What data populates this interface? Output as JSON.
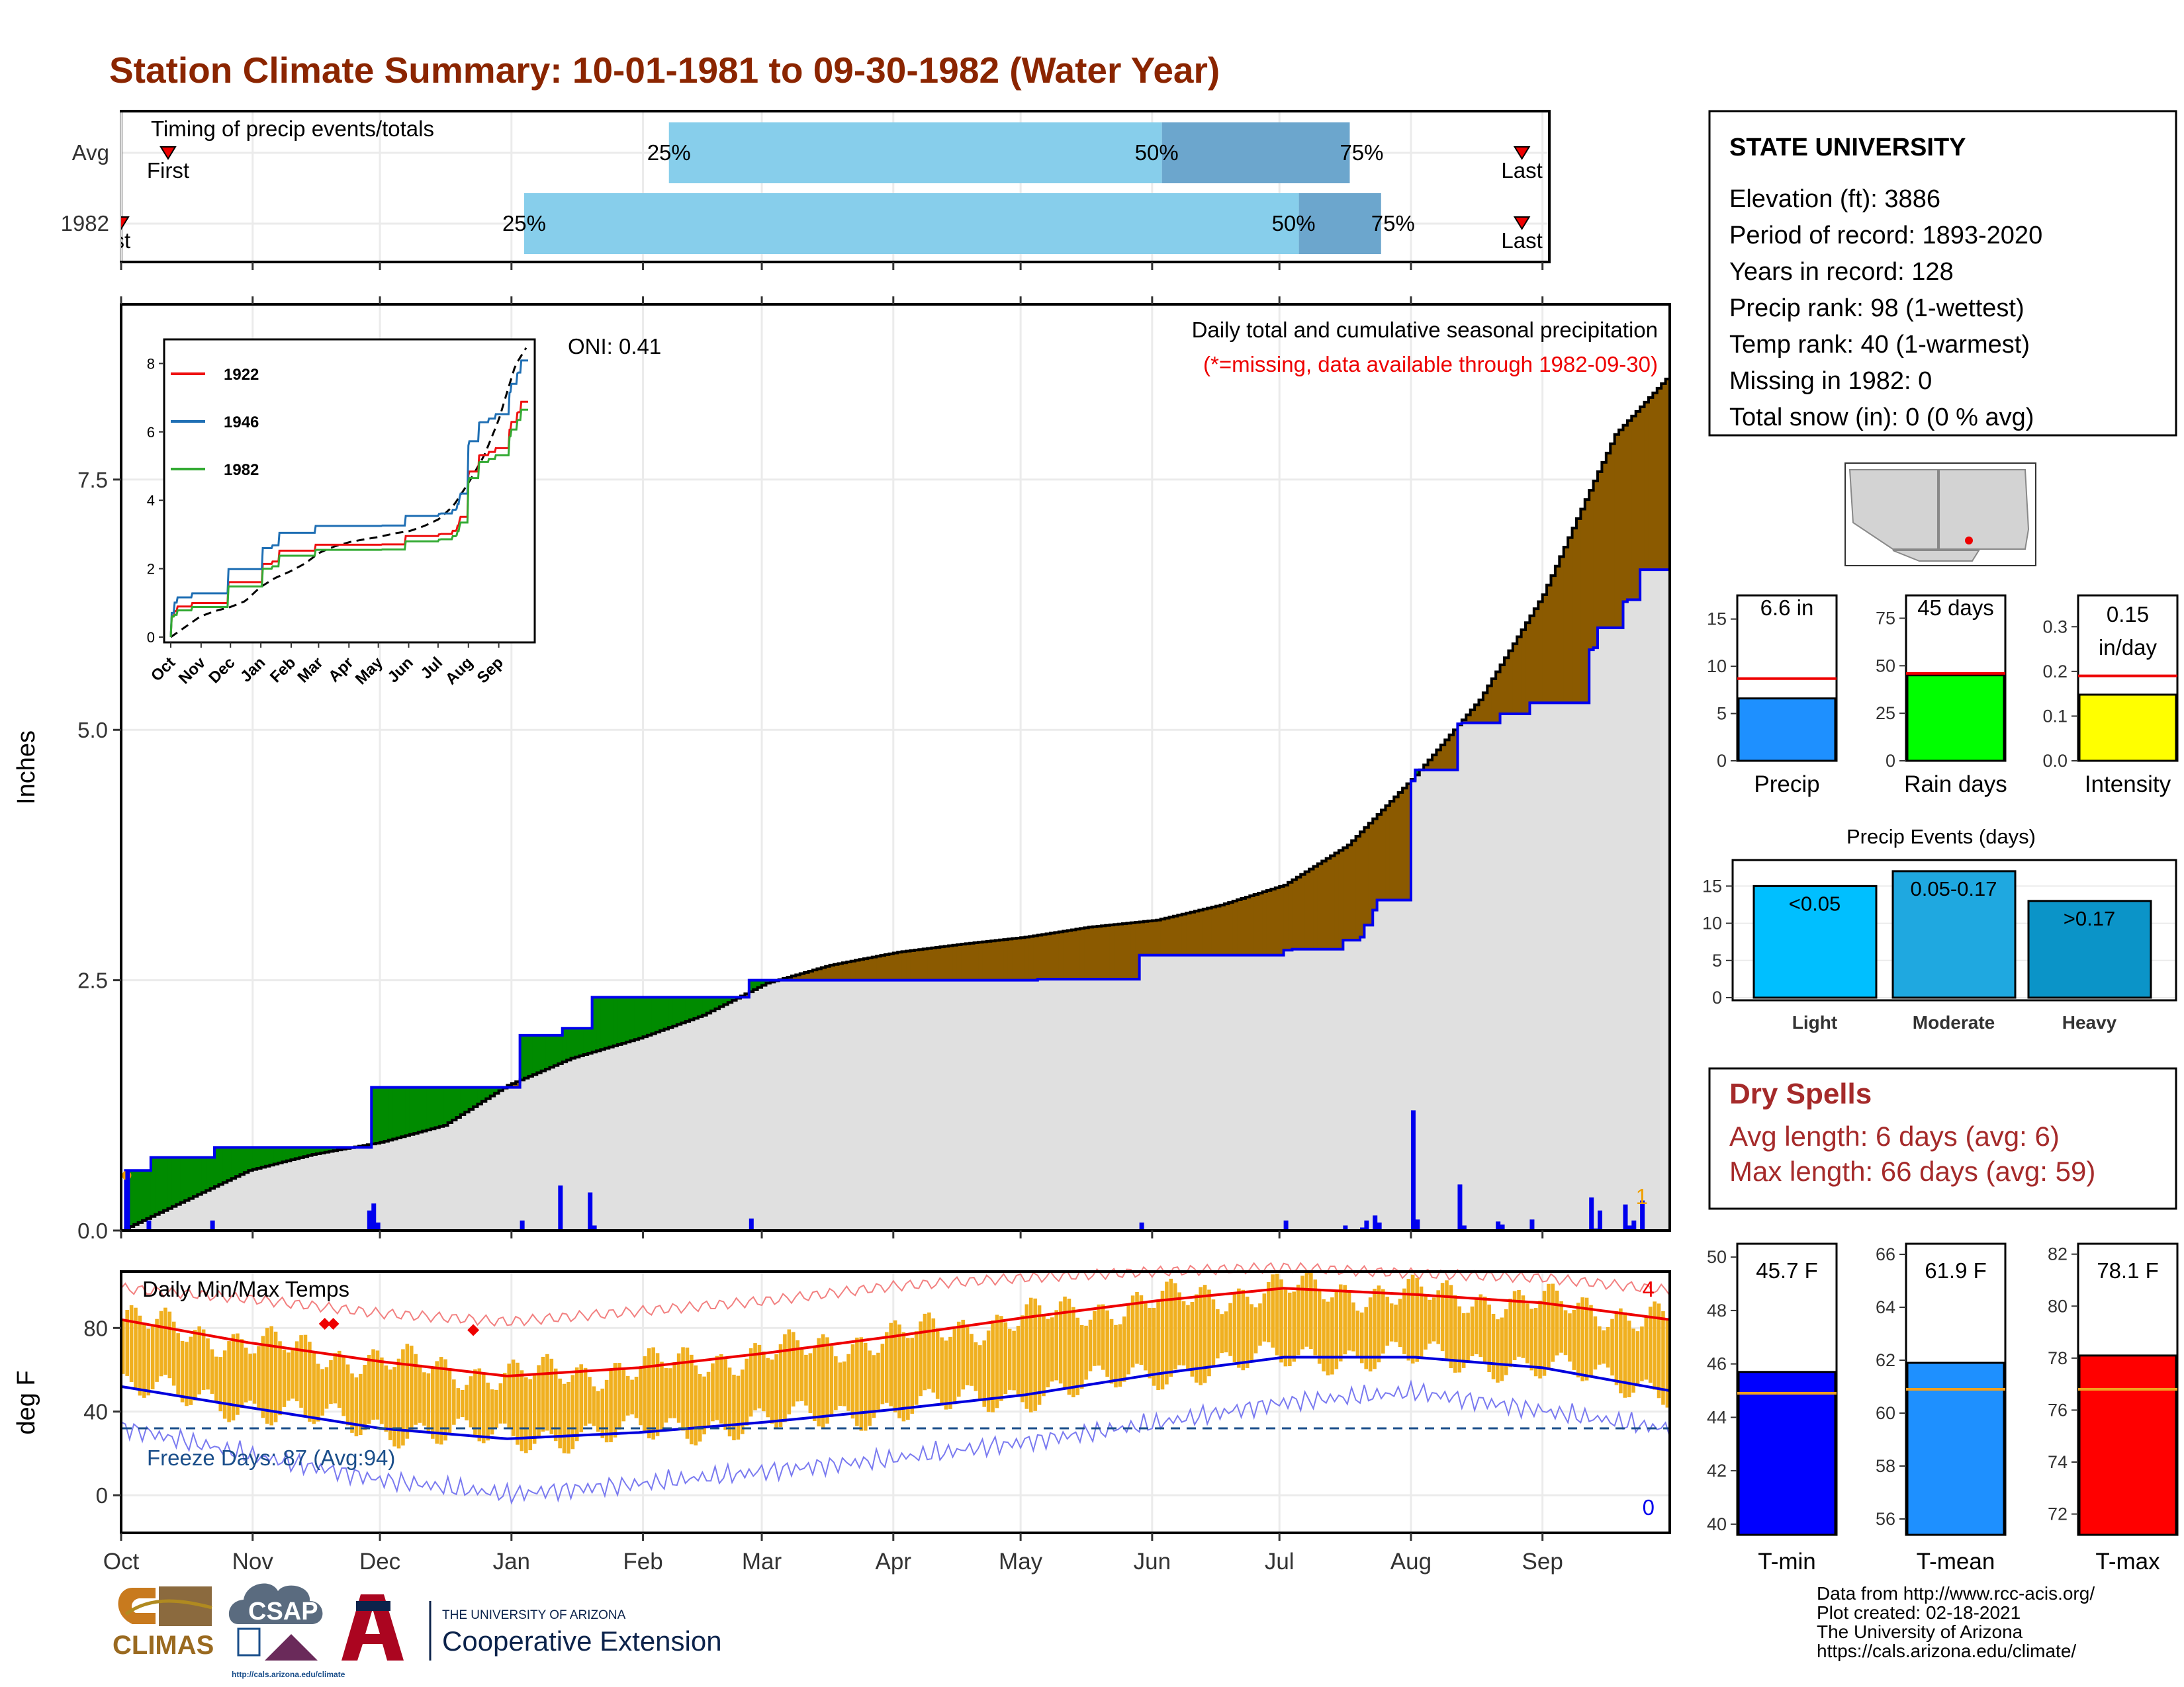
{
  "title": "Station Climate Summary: 10-01-1981 to 09-30-1982 (Water Year)",
  "colors": {
    "title": "#8B2500",
    "brown": "#8B5A00",
    "green": "#008B00",
    "blue": "#0000EE",
    "light_gray": "#E0E0E0",
    "bar_light": "#87CEEB",
    "bar_dark": "#6CA6CD",
    "orange_bars": "#F0B020",
    "dry_red": "#A52A2A"
  },
  "months": [
    "Oct",
    "Nov",
    "Dec",
    "Jan",
    "Feb",
    "Mar",
    "Apr",
    "May",
    "Jun",
    "Jul",
    "Aug",
    "Sep"
  ],
  "timing": {
    "label": "Timing of precip events/totals",
    "rows": [
      {
        "name": "Avg",
        "first": "First",
        "last": "Last",
        "first_day": 12,
        "last_day": 358,
        "p25_day": 140,
        "p50_day": 266,
        "p75_day": 314,
        "p25": "25%",
        "p50": "50%",
        "p75": "75%"
      },
      {
        "name": "1982",
        "first": "First",
        "last": "Last",
        "first_day": 0,
        "last_day": 358,
        "p25_day": 103,
        "p50_day": 301,
        "p75_day": 322,
        "p25": "25%",
        "p50": "50%",
        "p75": "75%"
      }
    ]
  },
  "precip_panel": {
    "ylabel": "Inches",
    "yticks": [
      "0.0",
      "2.5",
      "5.0",
      "7.5"
    ],
    "oni": "ONI: 0.41",
    "caption": "Daily total and cumulative seasonal precipitation",
    "missing_note": "(*=missing, data available through 1982-09-30)",
    "count_label": "1"
  },
  "inset": {
    "yticks": [
      "0",
      "2",
      "4",
      "6",
      "8"
    ],
    "months": [
      "Oct",
      "Nov",
      "Dec",
      "Jan",
      "Feb",
      "Mar",
      "Apr",
      "May",
      "Jun",
      "Jul",
      "Aug",
      "Sep"
    ],
    "legend": [
      {
        "name": "1922",
        "color": "#EE1111"
      },
      {
        "name": "1946",
        "color": "#1F6FB4"
      },
      {
        "name": "1982",
        "color": "#33AA33"
      }
    ]
  },
  "temp_panel": {
    "ylabel": "deg F",
    "label": "Daily Min/Max Temps",
    "yticks": [
      "0",
      "40",
      "80"
    ],
    "freeze": "Freeze Days: 87 (Avg:94)",
    "max_count": "4",
    "min_count": "0"
  },
  "station": {
    "name": "STATE UNIVERSITY",
    "lines": [
      "Elevation (ft): 3886",
      "Period of record: 1893-2020",
      "Years in record: 128",
      "Precip rank: 98 (1-wettest)",
      "Temp rank: 40 (1-warmest)",
      "Missing in 1982: 0",
      "Total snow (in): 0 (0 % avg)"
    ]
  },
  "mini_bars": [
    {
      "label": "Precip",
      "value_text": "6.6 in",
      "value": 6.6,
      "avg": 8.7,
      "max": 17.5,
      "ticks": [
        "0",
        "5",
        "10",
        "15"
      ],
      "tick_vals": [
        0,
        5,
        10,
        15
      ],
      "color": "#1E90FF"
    },
    {
      "label": "Rain days",
      "value_text": "45 days",
      "value": 45,
      "avg": 46,
      "max": 87,
      "ticks": [
        "0",
        "25",
        "50",
        "75"
      ],
      "tick_vals": [
        0,
        25,
        50,
        75
      ],
      "color": "#00FF00"
    },
    {
      "label": "Intensity",
      "value_text": "0.15",
      "value_text2": "in/day",
      "value": 0.148,
      "avg": 0.19,
      "max": 0.37,
      "ticks": [
        "0.0",
        "0.1",
        "0.2",
        "0.3"
      ],
      "tick_vals": [
        0,
        0.1,
        0.2,
        0.3
      ],
      "color": "#FFFF00"
    }
  ],
  "events": {
    "title": "Precip Events (days)",
    "ticks": [
      "0",
      "5",
      "10",
      "15"
    ],
    "bars": [
      {
        "label": "Light",
        "range": "<0.05",
        "value": 15,
        "color": "#00BFFF"
      },
      {
        "label": "Moderate",
        "range": "0.05-0.17",
        "value": 17,
        "color": "#1FA8E0"
      },
      {
        "label": "Heavy",
        "range": ">0.17",
        "value": 13,
        "color": "#0B94C8"
      }
    ]
  },
  "dry_spells": {
    "title": "Dry Spells",
    "avg": "Avg length: 6 days (avg: 6)",
    "max": "Max length: 66 days (avg: 59)"
  },
  "temp_bars": [
    {
      "label": "T-min",
      "value_text": "45.7 F",
      "value": 45.7,
      "avg": 44.9,
      "lo": 39.6,
      "hi": 50.5,
      "ticks": [
        "40",
        "42",
        "44",
        "46",
        "48",
        "50"
      ],
      "tick_vals": [
        40,
        42,
        44,
        46,
        48,
        50
      ],
      "color": "#0000FF"
    },
    {
      "label": "T-mean",
      "value_text": "61.9 F",
      "value": 61.9,
      "avg": 60.9,
      "lo": 55.4,
      "hi": 66.4,
      "ticks": [
        "56",
        "58",
        "60",
        "62",
        "64",
        "66"
      ],
      "tick_vals": [
        56,
        58,
        60,
        62,
        64,
        66
      ],
      "color": "#1E90FF"
    },
    {
      "label": "T-max",
      "value_text": "78.1 F",
      "value": 78.1,
      "avg": 76.8,
      "lo": 71.2,
      "hi": 82.4,
      "ticks": [
        "72",
        "74",
        "76",
        "78",
        "80",
        "82"
      ],
      "tick_vals": [
        72,
        74,
        76,
        78,
        80,
        82
      ],
      "color": "#FF0000"
    }
  ],
  "footer": {
    "lines": [
      "Data from http://www.rcc-acis.org/",
      "Plot created: 02-18-2021",
      "The University of Arizona",
      "https://cals.arizona.edu/climate/"
    ],
    "climas": "CLIMAS",
    "csap": "CSAP",
    "csap_url": "http://cals.arizona.edu/climate",
    "ua_small": "THE UNIVERSITY OF ARIZONA",
    "ua_big": "Cooperative Extension"
  },
  "chart_data": {
    "type": "area",
    "x_unit": "day of water year (Oct 1 = 0)",
    "y_unit": "inches",
    "ylim": [
      0,
      9.25
    ],
    "avg_cumulative": [
      [
        0,
        0
      ],
      [
        15,
        0.3
      ],
      [
        30,
        0.6
      ],
      [
        45,
        0.76
      ],
      [
        61,
        0.88
      ],
      [
        76,
        1.05
      ],
      [
        91,
        1.45
      ],
      [
        106,
        1.72
      ],
      [
        122,
        1.92
      ],
      [
        137,
        2.15
      ],
      [
        152,
        2.47
      ],
      [
        167,
        2.65
      ],
      [
        183,
        2.78
      ],
      [
        198,
        2.86
      ],
      [
        213,
        2.93
      ],
      [
        228,
        3.03
      ],
      [
        244,
        3.1
      ],
      [
        259,
        3.25
      ],
      [
        274,
        3.45
      ],
      [
        289,
        3.85
      ],
      [
        305,
        4.55
      ],
      [
        320,
        5.3
      ],
      [
        335,
        6.35
      ],
      [
        345,
        7.3
      ],
      [
        352,
        7.95
      ],
      [
        365,
        8.55
      ]
    ],
    "year_cumulative": [
      [
        0,
        0
      ],
      [
        1,
        0.6
      ],
      [
        6,
        0.6
      ],
      [
        7,
        0.73
      ],
      [
        21,
        0.73
      ],
      [
        22,
        0.83
      ],
      [
        58,
        0.83
      ],
      [
        59,
        1.43
      ],
      [
        93,
        1.43
      ],
      [
        94,
        1.95
      ],
      [
        103,
        1.95
      ],
      [
        104,
        2.02
      ],
      [
        110,
        2.02
      ],
      [
        111,
        2.33
      ],
      [
        147,
        2.33
      ],
      [
        148,
        2.5
      ],
      [
        215,
        2.5
      ],
      [
        216,
        2.51
      ],
      [
        239,
        2.51
      ],
      [
        240,
        2.75
      ],
      [
        273,
        2.75
      ],
      [
        274,
        2.8
      ],
      [
        276,
        2.81
      ],
      [
        286,
        2.81
      ],
      [
        288,
        2.9
      ],
      [
        292,
        2.93
      ],
      [
        293,
        3.05
      ],
      [
        295,
        3.2
      ],
      [
        296,
        3.3
      ],
      [
        303,
        3.3
      ],
      [
        304,
        4.49
      ],
      [
        305,
        4.6
      ],
      [
        314,
        4.6
      ],
      [
        315,
        5.06
      ],
      [
        316,
        5.07
      ],
      [
        323,
        5.07
      ],
      [
        325,
        5.16
      ],
      [
        331,
        5.16
      ],
      [
        332,
        5.27
      ],
      [
        345,
        5.27
      ],
      [
        346,
        5.8
      ],
      [
        347,
        5.82
      ],
      [
        348,
        6.02
      ],
      [
        353,
        6.02
      ],
      [
        354,
        6.28
      ],
      [
        355,
        6.3
      ],
      [
        358,
        6.6
      ],
      [
        365,
        6.6
      ]
    ],
    "daily_precip": [
      [
        1,
        0.6
      ],
      [
        6,
        0.1
      ],
      [
        21,
        0.1
      ],
      [
        58,
        0.2
      ],
      [
        59,
        0.27
      ],
      [
        60,
        0.08
      ],
      [
        94,
        0.1
      ],
      [
        103,
        0.45
      ],
      [
        110,
        0.38
      ],
      [
        111,
        0.05
      ],
      [
        148,
        0.12
      ],
      [
        240,
        0.08
      ],
      [
        274,
        0.1
      ],
      [
        288,
        0.05
      ],
      [
        292,
        0.03
      ],
      [
        293,
        0.1
      ],
      [
        295,
        0.15
      ],
      [
        296,
        0.08
      ],
      [
        304,
        1.2
      ],
      [
        305,
        0.11
      ],
      [
        315,
        0.46
      ],
      [
        316,
        0.05
      ],
      [
        324,
        0.09
      ],
      [
        325,
        0.06
      ],
      [
        332,
        0.11
      ],
      [
        346,
        0.33
      ],
      [
        347,
        0.02
      ],
      [
        348,
        0.2
      ],
      [
        354,
        0.26
      ],
      [
        355,
        0.05
      ],
      [
        356,
        0.1
      ],
      [
        358,
        0.3
      ]
    ],
    "temps": {
      "ylim": [
        -18,
        107
      ],
      "normal_max": [
        [
          0,
          84
        ],
        [
          30,
          73
        ],
        [
          61,
          64
        ],
        [
          91,
          57
        ],
        [
          122,
          61
        ],
        [
          152,
          68
        ],
        [
          182,
          76
        ],
        [
          213,
          85
        ],
        [
          244,
          93
        ],
        [
          274,
          99
        ],
        [
          305,
          96
        ],
        [
          335,
          92
        ],
        [
          365,
          84
        ]
      ],
      "normal_min": [
        [
          0,
          52
        ],
        [
          30,
          42
        ],
        [
          61,
          32
        ],
        [
          91,
          27
        ],
        [
          122,
          30
        ],
        [
          152,
          35
        ],
        [
          182,
          41
        ],
        [
          213,
          48
        ],
        [
          244,
          58
        ],
        [
          274,
          66
        ],
        [
          305,
          66
        ],
        [
          335,
          61
        ],
        [
          365,
          50
        ]
      ],
      "record_max": [
        [
          0,
          99
        ],
        [
          30,
          94
        ],
        [
          61,
          87
        ],
        [
          91,
          83
        ],
        [
          122,
          88
        ],
        [
          152,
          93
        ],
        [
          182,
          100
        ],
        [
          213,
          104
        ],
        [
          244,
          107
        ],
        [
          274,
          109
        ],
        [
          305,
          106
        ],
        [
          335,
          104
        ],
        [
          365,
          98
        ]
      ],
      "record_min": [
        [
          0,
          35
        ],
        [
          30,
          22
        ],
        [
          61,
          10
        ],
        [
          91,
          3
        ],
        [
          122,
          8
        ],
        [
          152,
          14
        ],
        [
          182,
          20
        ],
        [
          213,
          28
        ],
        [
          244,
          37
        ],
        [
          274,
          47
        ],
        [
          305,
          52
        ],
        [
          335,
          43
        ],
        [
          365,
          34
        ]
      ],
      "freeze_line": 32
    }
  }
}
